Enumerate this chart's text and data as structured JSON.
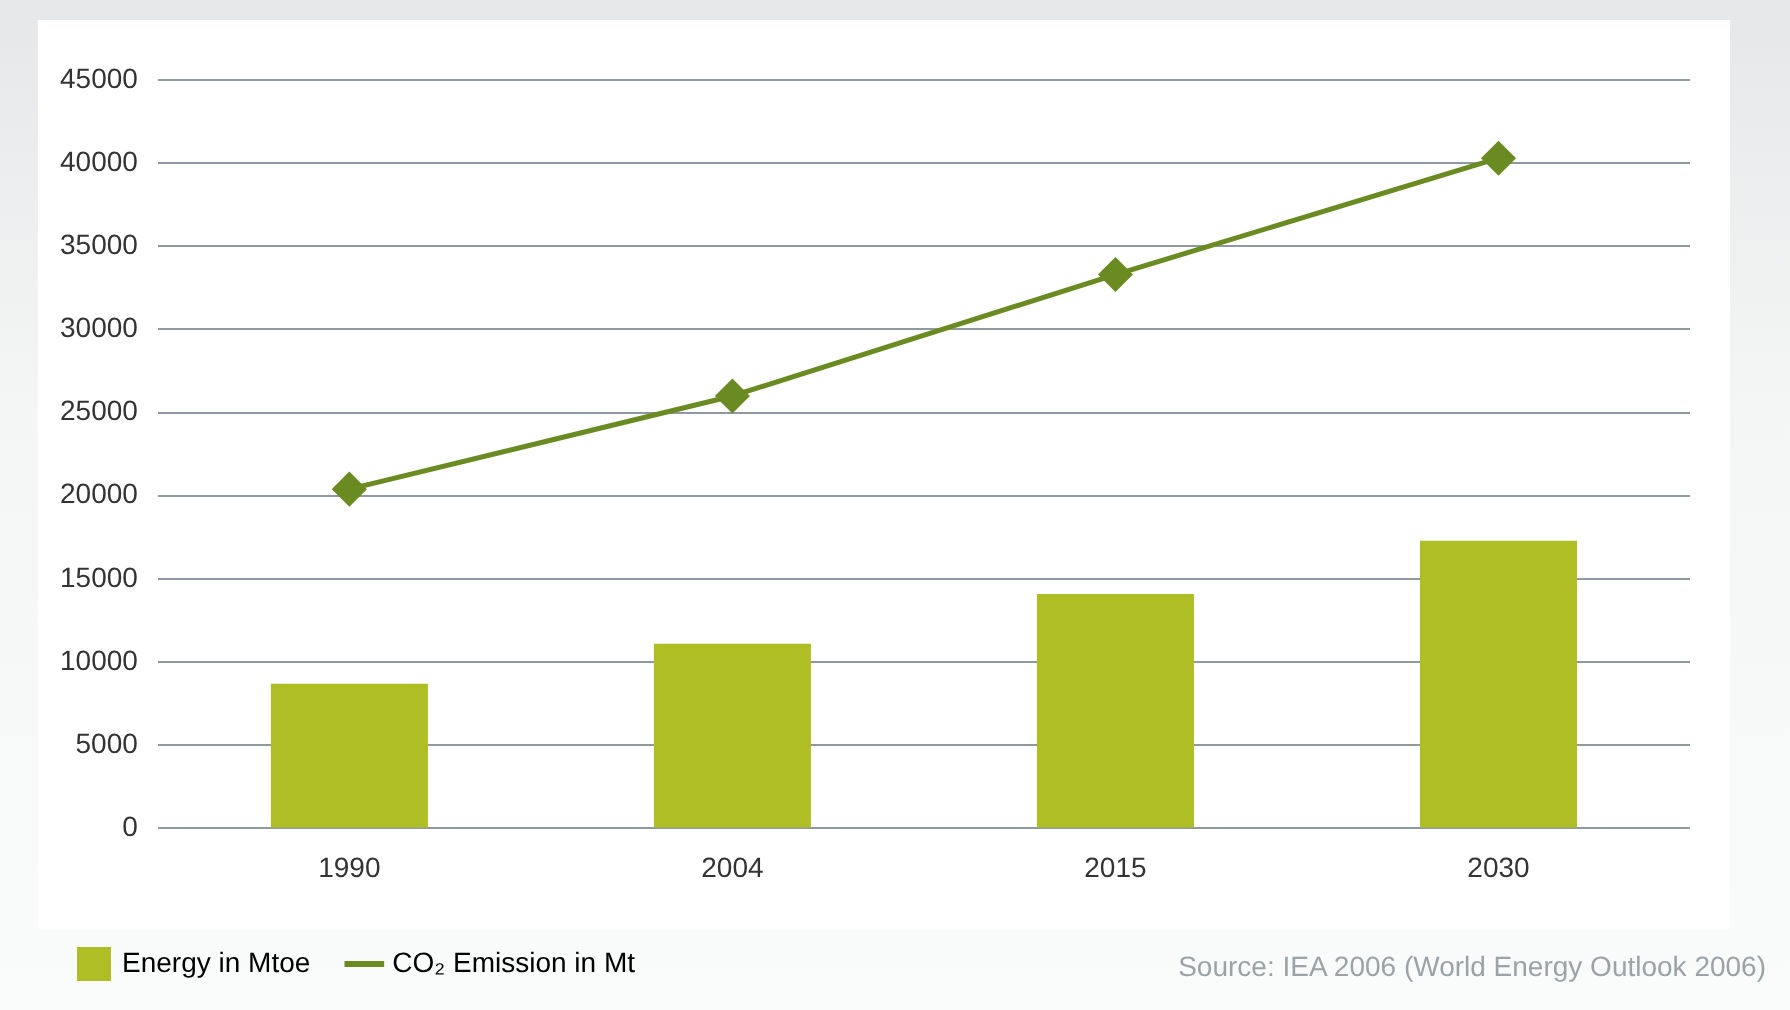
{
  "chart_data": {
    "type": "bar",
    "categories": [
      "1990",
      "2004",
      "2015",
      "2030"
    ],
    "series": [
      {
        "name": "Energy in Mtoe",
        "color": "#afbe24",
        "values": [
          8700,
          11100,
          14100,
          17300
        ]
      },
      {
        "name": "CO₂ Emission in Mt",
        "type": "line",
        "color": "#6a8a22",
        "marker": "diamond",
        "values": [
          20400,
          26000,
          33300,
          40300
        ]
      }
    ],
    "ylim": [
      0,
      45000
    ],
    "yticks": [
      0,
      5000,
      10000,
      15000,
      20000,
      25000,
      30000,
      35000,
      40000,
      45000
    ],
    "grid": "y",
    "legend": "bottom left",
    "annotations": [
      "Source: IEA 2006 (World Energy Outlook 2006)"
    ]
  }
}
